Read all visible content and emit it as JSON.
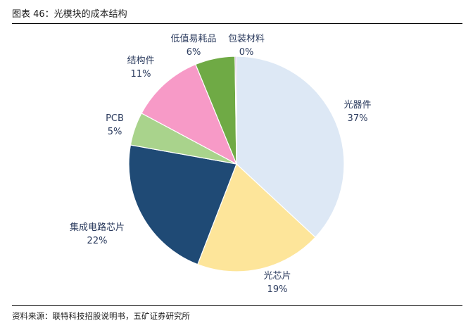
{
  "figure": {
    "title": "图表 46：光模块的成本结构",
    "source": "资料来源：联特科技招股说明书，五矿证券研究所"
  },
  "chart_data": {
    "type": "pie",
    "title": "",
    "slices": [
      {
        "label": "光器件",
        "value": 37,
        "value_label": "37%",
        "color": "#dde8f5"
      },
      {
        "label": "光芯片",
        "value": 19,
        "value_label": "19%",
        "color": "#fde59a"
      },
      {
        "label": "集成电路芯片",
        "value": 22,
        "value_label": "22%",
        "color": "#1f4a75"
      },
      {
        "label": "PCB",
        "value": 5,
        "value_label": "5%",
        "color": "#a9d38c"
      },
      {
        "label": "结构件",
        "value": 11,
        "value_label": "11%",
        "color": "#f79ac7"
      },
      {
        "label": "低值易耗品",
        "value": 6,
        "value_label": "6%",
        "color": "#6faa45"
      },
      {
        "label": "包装材料",
        "value": 0,
        "value_label": "0%",
        "color": "#c4a7d6"
      }
    ]
  }
}
